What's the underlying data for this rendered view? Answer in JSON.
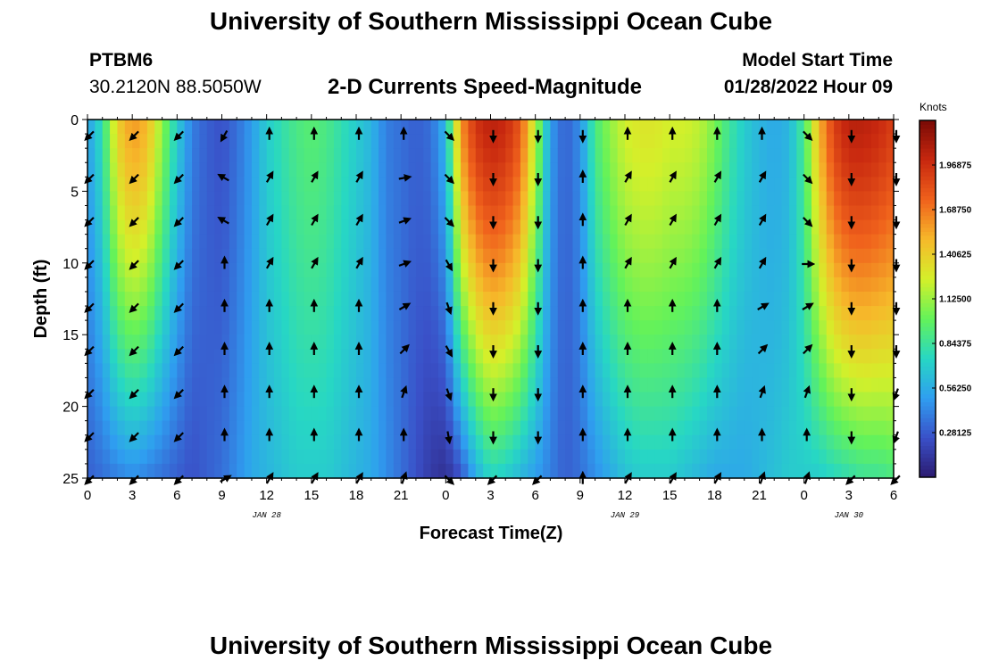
{
  "header": {
    "title": "University of Southern Mississippi Ocean Cube",
    "station_id": "PTBM6",
    "coordinates": "30.2120N  88.5050W",
    "subtitle": "2-D Currents Speed-Magnitude",
    "model_start_label": "Model Start Time",
    "model_start_value": "01/28/2022 Hour 09"
  },
  "footer": {
    "title": "University of Southern Mississippi Ocean Cube"
  },
  "colorbar": {
    "units": "Knots",
    "min": 0,
    "max": 2.25,
    "tick_labels": [
      "1.96875",
      "1.68750",
      "1.40625",
      "1.12500",
      "0.84375",
      "0.56250",
      "0.28125"
    ],
    "tick_values": [
      1.96875,
      1.6875,
      1.40625,
      1.125,
      0.84375,
      0.5625,
      0.28125
    ],
    "colormap": [
      "#2b1a6e",
      "#3a50c8",
      "#2f9ef0",
      "#27d7c4",
      "#63f25a",
      "#d4f02a",
      "#f6b92a",
      "#f0621c",
      "#c8280f",
      "#7a0a05"
    ]
  },
  "chart_data": {
    "type": "heatmap",
    "xlabel": "Forecast Time(Z)",
    "ylabel": "Depth (ft)",
    "x_range_hours": [
      0,
      54
    ],
    "ylim": [
      25,
      0
    ],
    "x_tick_labels": [
      "0",
      "3",
      "6",
      "9",
      "12",
      "15",
      "18",
      "21",
      "0",
      "3",
      "6",
      "9",
      "12",
      "15",
      "18",
      "21",
      "0",
      "3",
      "6"
    ],
    "y_ticks": [
      0,
      5,
      10,
      15,
      20,
      25
    ],
    "date_labels": [
      {
        "text": "JAN 28",
        "hour": 12
      },
      {
        "text": "JAN 29",
        "hour": 36
      },
      {
        "text": "JAN 30",
        "hour": 51
      }
    ],
    "time_hours": [
      0,
      1,
      2,
      3,
      4,
      5,
      6,
      7,
      8,
      9,
      10,
      11,
      12,
      13,
      14,
      15,
      16,
      17,
      18,
      19,
      20,
      21,
      22,
      23,
      24,
      25,
      26,
      27,
      28,
      29,
      30,
      31,
      32,
      33,
      34,
      35,
      36,
      37,
      38,
      39,
      40,
      41,
      42,
      43,
      44,
      45,
      46,
      47,
      48,
      49,
      50,
      51,
      52,
      53,
      54
    ],
    "speed_knots_surface": [
      0.5,
      0.8,
      1.4,
      1.6,
      1.5,
      1.1,
      0.7,
      0.4,
      0.3,
      0.25,
      0.35,
      0.5,
      0.7,
      0.8,
      0.9,
      0.95,
      0.9,
      0.8,
      0.7,
      0.6,
      0.4,
      0.35,
      0.3,
      0.35,
      0.6,
      1.6,
      1.95,
      2.05,
      2.0,
      1.8,
      1.2,
      0.5,
      0.3,
      0.45,
      0.9,
      1.1,
      1.25,
      1.3,
      1.3,
      1.25,
      1.25,
      1.2,
      1.05,
      0.85,
      0.7,
      0.6,
      0.55,
      0.6,
      0.9,
      1.5,
      1.9,
      2.05,
      2.05,
      2.0,
      1.9
    ],
    "speed_knots_bottom": [
      0.3,
      0.35,
      0.4,
      0.45,
      0.4,
      0.35,
      0.3,
      0.25,
      0.3,
      0.35,
      0.45,
      0.55,
      0.6,
      0.65,
      0.7,
      0.7,
      0.7,
      0.65,
      0.6,
      0.55,
      0.45,
      0.35,
      0.25,
      0.15,
      0.1,
      0.25,
      0.55,
      0.75,
      0.7,
      0.6,
      0.5,
      0.4,
      0.3,
      0.35,
      0.45,
      0.55,
      0.65,
      0.7,
      0.7,
      0.7,
      0.65,
      0.6,
      0.55,
      0.55,
      0.55,
      0.6,
      0.65,
      0.7,
      0.7,
      0.7,
      0.75,
      0.8,
      0.85,
      0.85,
      0.9
    ],
    "vector_depths_ft": [
      0,
      3,
      6,
      9,
      12,
      15,
      18,
      21,
      24
    ],
    "vector_hours": [
      0,
      3,
      6,
      9,
      12,
      15,
      18,
      21,
      24,
      27,
      30,
      33,
      36,
      39,
      42,
      45,
      48,
      51,
      54
    ],
    "vector_directions_deg": [
      [
        225,
        225,
        225,
        225,
        225,
        225,
        225,
        225,
        225
      ],
      [
        225,
        225,
        225,
        225,
        225,
        225,
        225,
        225,
        225
      ],
      [
        225,
        225,
        225,
        225,
        225,
        225,
        225,
        225,
        225
      ],
      [
        210,
        300,
        300,
        0,
        0,
        0,
        0,
        0,
        60
      ],
      [
        0,
        30,
        30,
        30,
        0,
        0,
        0,
        0,
        30
      ],
      [
        0,
        30,
        30,
        30,
        0,
        0,
        0,
        0,
        30
      ],
      [
        0,
        30,
        30,
        30,
        0,
        0,
        0,
        0,
        30
      ],
      [
        0,
        80,
        70,
        70,
        60,
        45,
        20,
        0,
        20
      ],
      [
        135,
        135,
        135,
        150,
        160,
        150,
        160,
        170,
        135
      ],
      [
        180,
        180,
        180,
        180,
        180,
        180,
        180,
        180,
        225
      ],
      [
        180,
        180,
        180,
        180,
        180,
        180,
        180,
        180,
        225
      ],
      [
        180,
        0,
        0,
        0,
        0,
        0,
        0,
        0,
        0
      ],
      [
        0,
        30,
        30,
        30,
        0,
        0,
        0,
        0,
        30
      ],
      [
        0,
        30,
        30,
        30,
        0,
        0,
        0,
        0,
        30
      ],
      [
        0,
        30,
        30,
        30,
        0,
        0,
        0,
        0,
        30
      ],
      [
        0,
        30,
        30,
        30,
        60,
        45,
        20,
        0,
        20
      ],
      [
        135,
        135,
        135,
        90,
        60,
        45,
        20,
        0,
        20
      ],
      [
        180,
        180,
        180,
        180,
        180,
        180,
        180,
        180,
        225
      ],
      [
        180,
        180,
        180,
        180,
        180,
        180,
        200,
        200,
        225
      ]
    ]
  }
}
